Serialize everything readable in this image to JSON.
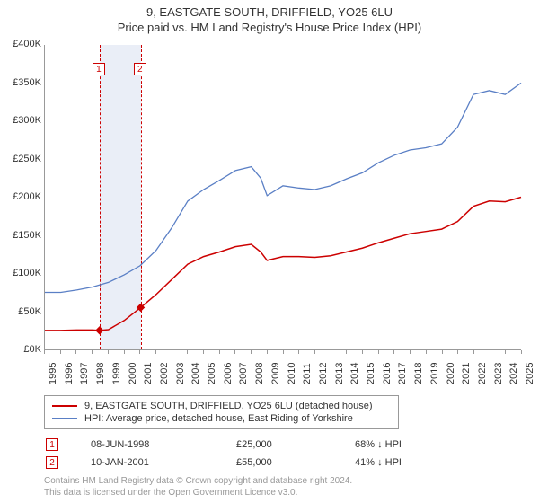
{
  "title_main": "9, EASTGATE SOUTH, DRIFFIELD, YO25 6LU",
  "title_sub": "Price paid vs. HM Land Registry's House Price Index (HPI)",
  "chart": {
    "type": "line",
    "x_start_year": 1995,
    "x_end_year": 2025,
    "ylim": [
      0,
      400000
    ],
    "ytick_step": 50000,
    "ytick_labels": [
      "£0K",
      "£50K",
      "£100K",
      "£150K",
      "£200K",
      "£250K",
      "£300K",
      "£350K",
      "£400K"
    ],
    "xtick_labels": [
      "1995",
      "1996",
      "1997",
      "1998",
      "1999",
      "2000",
      "2001",
      "2002",
      "2003",
      "2004",
      "2005",
      "2006",
      "2007",
      "2008",
      "2009",
      "2010",
      "2011",
      "2012",
      "2013",
      "2014",
      "2015",
      "2016",
      "2017",
      "2018",
      "2019",
      "2020",
      "2021",
      "2022",
      "2023",
      "2024",
      "2025"
    ],
    "band": {
      "start_year": 1998.44,
      "end_year": 2001.03,
      "color": "#eaeef7"
    },
    "background_color": "#ffffff",
    "axis_color": "#999999",
    "marker_line_color": "#cc0000",
    "series": [
      {
        "name": "property",
        "color": "#cc0000",
        "stroke_width": 1.5,
        "points": [
          [
            1995.0,
            25000
          ],
          [
            1996.0,
            25000
          ],
          [
            1997.0,
            25500
          ],
          [
            1998.0,
            25500
          ],
          [
            1998.44,
            25000
          ],
          [
            1999.0,
            26000
          ],
          [
            2000.0,
            38000
          ],
          [
            2001.03,
            55000
          ],
          [
            2002.0,
            72000
          ],
          [
            2003.0,
            92000
          ],
          [
            2004.0,
            112000
          ],
          [
            2005.0,
            122000
          ],
          [
            2006.0,
            128000
          ],
          [
            2007.0,
            135000
          ],
          [
            2008.0,
            138000
          ],
          [
            2008.6,
            128000
          ],
          [
            2009.0,
            117000
          ],
          [
            2010.0,
            122000
          ],
          [
            2011.0,
            122000
          ],
          [
            2012.0,
            121000
          ],
          [
            2013.0,
            123000
          ],
          [
            2014.0,
            128000
          ],
          [
            2015.0,
            133000
          ],
          [
            2016.0,
            140000
          ],
          [
            2017.0,
            146000
          ],
          [
            2018.0,
            152000
          ],
          [
            2019.0,
            155000
          ],
          [
            2020.0,
            158000
          ],
          [
            2021.0,
            168000
          ],
          [
            2022.0,
            188000
          ],
          [
            2023.0,
            195000
          ],
          [
            2024.0,
            194000
          ],
          [
            2025.0,
            200000
          ]
        ]
      },
      {
        "name": "hpi",
        "color": "#5a7fc5",
        "stroke_width": 1.3,
        "points": [
          [
            1995.0,
            75000
          ],
          [
            1996.0,
            75000
          ],
          [
            1997.0,
            78000
          ],
          [
            1998.0,
            82000
          ],
          [
            1999.0,
            88000
          ],
          [
            2000.0,
            98000
          ],
          [
            2001.0,
            110000
          ],
          [
            2002.0,
            130000
          ],
          [
            2003.0,
            160000
          ],
          [
            2004.0,
            195000
          ],
          [
            2005.0,
            210000
          ],
          [
            2006.0,
            222000
          ],
          [
            2007.0,
            235000
          ],
          [
            2008.0,
            240000
          ],
          [
            2008.6,
            225000
          ],
          [
            2009.0,
            202000
          ],
          [
            2010.0,
            215000
          ],
          [
            2011.0,
            212000
          ],
          [
            2012.0,
            210000
          ],
          [
            2013.0,
            215000
          ],
          [
            2014.0,
            224000
          ],
          [
            2015.0,
            232000
          ],
          [
            2016.0,
            245000
          ],
          [
            2017.0,
            255000
          ],
          [
            2018.0,
            262000
          ],
          [
            2019.0,
            265000
          ],
          [
            2020.0,
            270000
          ],
          [
            2021.0,
            292000
          ],
          [
            2022.0,
            335000
          ],
          [
            2023.0,
            340000
          ],
          [
            2024.0,
            335000
          ],
          [
            2025.0,
            350000
          ]
        ]
      }
    ],
    "sale_points": [
      {
        "badge": "1",
        "year": 1998.44,
        "price": 25000
      },
      {
        "badge": "2",
        "year": 2001.03,
        "price": 55000
      }
    ]
  },
  "legend": [
    {
      "color": "#cc0000",
      "label": "9, EASTGATE SOUTH, DRIFFIELD, YO25 6LU (detached house)"
    },
    {
      "color": "#5a7fc5",
      "label": "HPI: Average price, detached house, East Riding of Yorkshire"
    }
  ],
  "rows": [
    {
      "badge": "1",
      "date": "08-JUN-1998",
      "price": "£25,000",
      "pct": "68% ↓ HPI"
    },
    {
      "badge": "2",
      "date": "10-JAN-2001",
      "price": "£55,000",
      "pct": "41% ↓ HPI"
    }
  ],
  "footer_line1": "Contains HM Land Registry data © Crown copyright and database right 2024.",
  "footer_line2": "This data is licensed under the Open Government Licence v3.0."
}
